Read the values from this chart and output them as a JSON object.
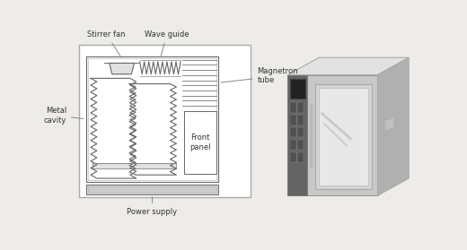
{
  "bg_color": "#eeece8",
  "line_color": "#555555",
  "light_line": "#999999",
  "text_color": "#333333",
  "labels": {
    "stirrer_fan": "Stirrer fan",
    "wave_guide": "Wave guide",
    "metal_cavity": "Metal\ncavity",
    "front_panel": "Front\npanel",
    "power_supply": "Power supply",
    "magnetron_tube": "Magnetron\ntube"
  }
}
